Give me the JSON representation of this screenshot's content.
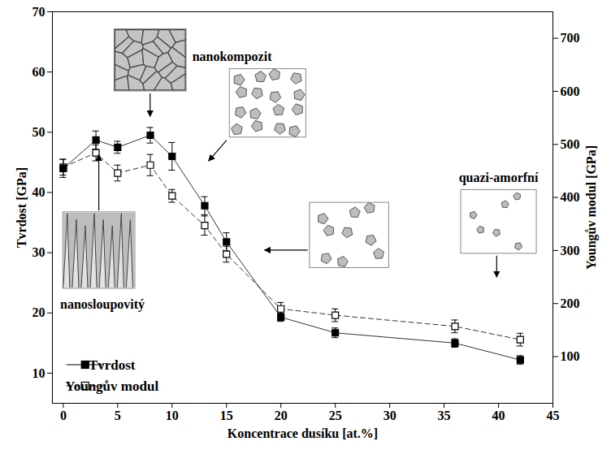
{
  "chart_data": {
    "type": "line",
    "x": [
      0,
      3,
      5,
      8,
      10,
      13,
      15,
      20,
      25,
      36,
      42
    ],
    "xlabel": "Koncentrace dusíku [at.%]",
    "ylabel": "Tvrdost [GPa]",
    "y2label": "Youngův modul [GPa]",
    "xlim": [
      -1,
      45
    ],
    "xticks": [
      0,
      5,
      10,
      15,
      20,
      25,
      30,
      35,
      40,
      45
    ],
    "ylim": [
      5,
      70
    ],
    "yticks": [
      10,
      20,
      30,
      40,
      50,
      60,
      70
    ],
    "y2lim": [
      12,
      750
    ],
    "y2ticks": [
      100,
      200,
      300,
      400,
      500,
      600,
      700
    ],
    "grid": false,
    "legend": "lower left",
    "series": [
      {
        "name": "Tvrdost",
        "color": "#000000",
        "marker": "square",
        "line_style": "solid",
        "values": [
          44,
          48.7,
          47.5,
          49.5,
          46,
          37.8,
          31.8,
          19.3,
          16.7,
          15,
          12.2
        ],
        "errors": [
          1.5,
          1.5,
          1.0,
          1.3,
          2.3,
          1.5,
          1.5,
          0.7,
          0.8,
          0.7,
          0.7
        ]
      },
      {
        "name": "Youngův modul",
        "axis": "y2",
        "color": "#000000",
        "marker": "square-open",
        "line_style": "dashed",
        "values": [
          457,
          484,
          446,
          461,
          403,
          347,
          293,
          190,
          178,
          157,
          132
        ],
        "errors": [
          15,
          15,
          15,
          20,
          12,
          18,
          15,
          12,
          12,
          12,
          12
        ]
      }
    ],
    "annotations": [
      "nanosloupovitý",
      "nanokompozit",
      "quazi-amorfní"
    ]
  }
}
